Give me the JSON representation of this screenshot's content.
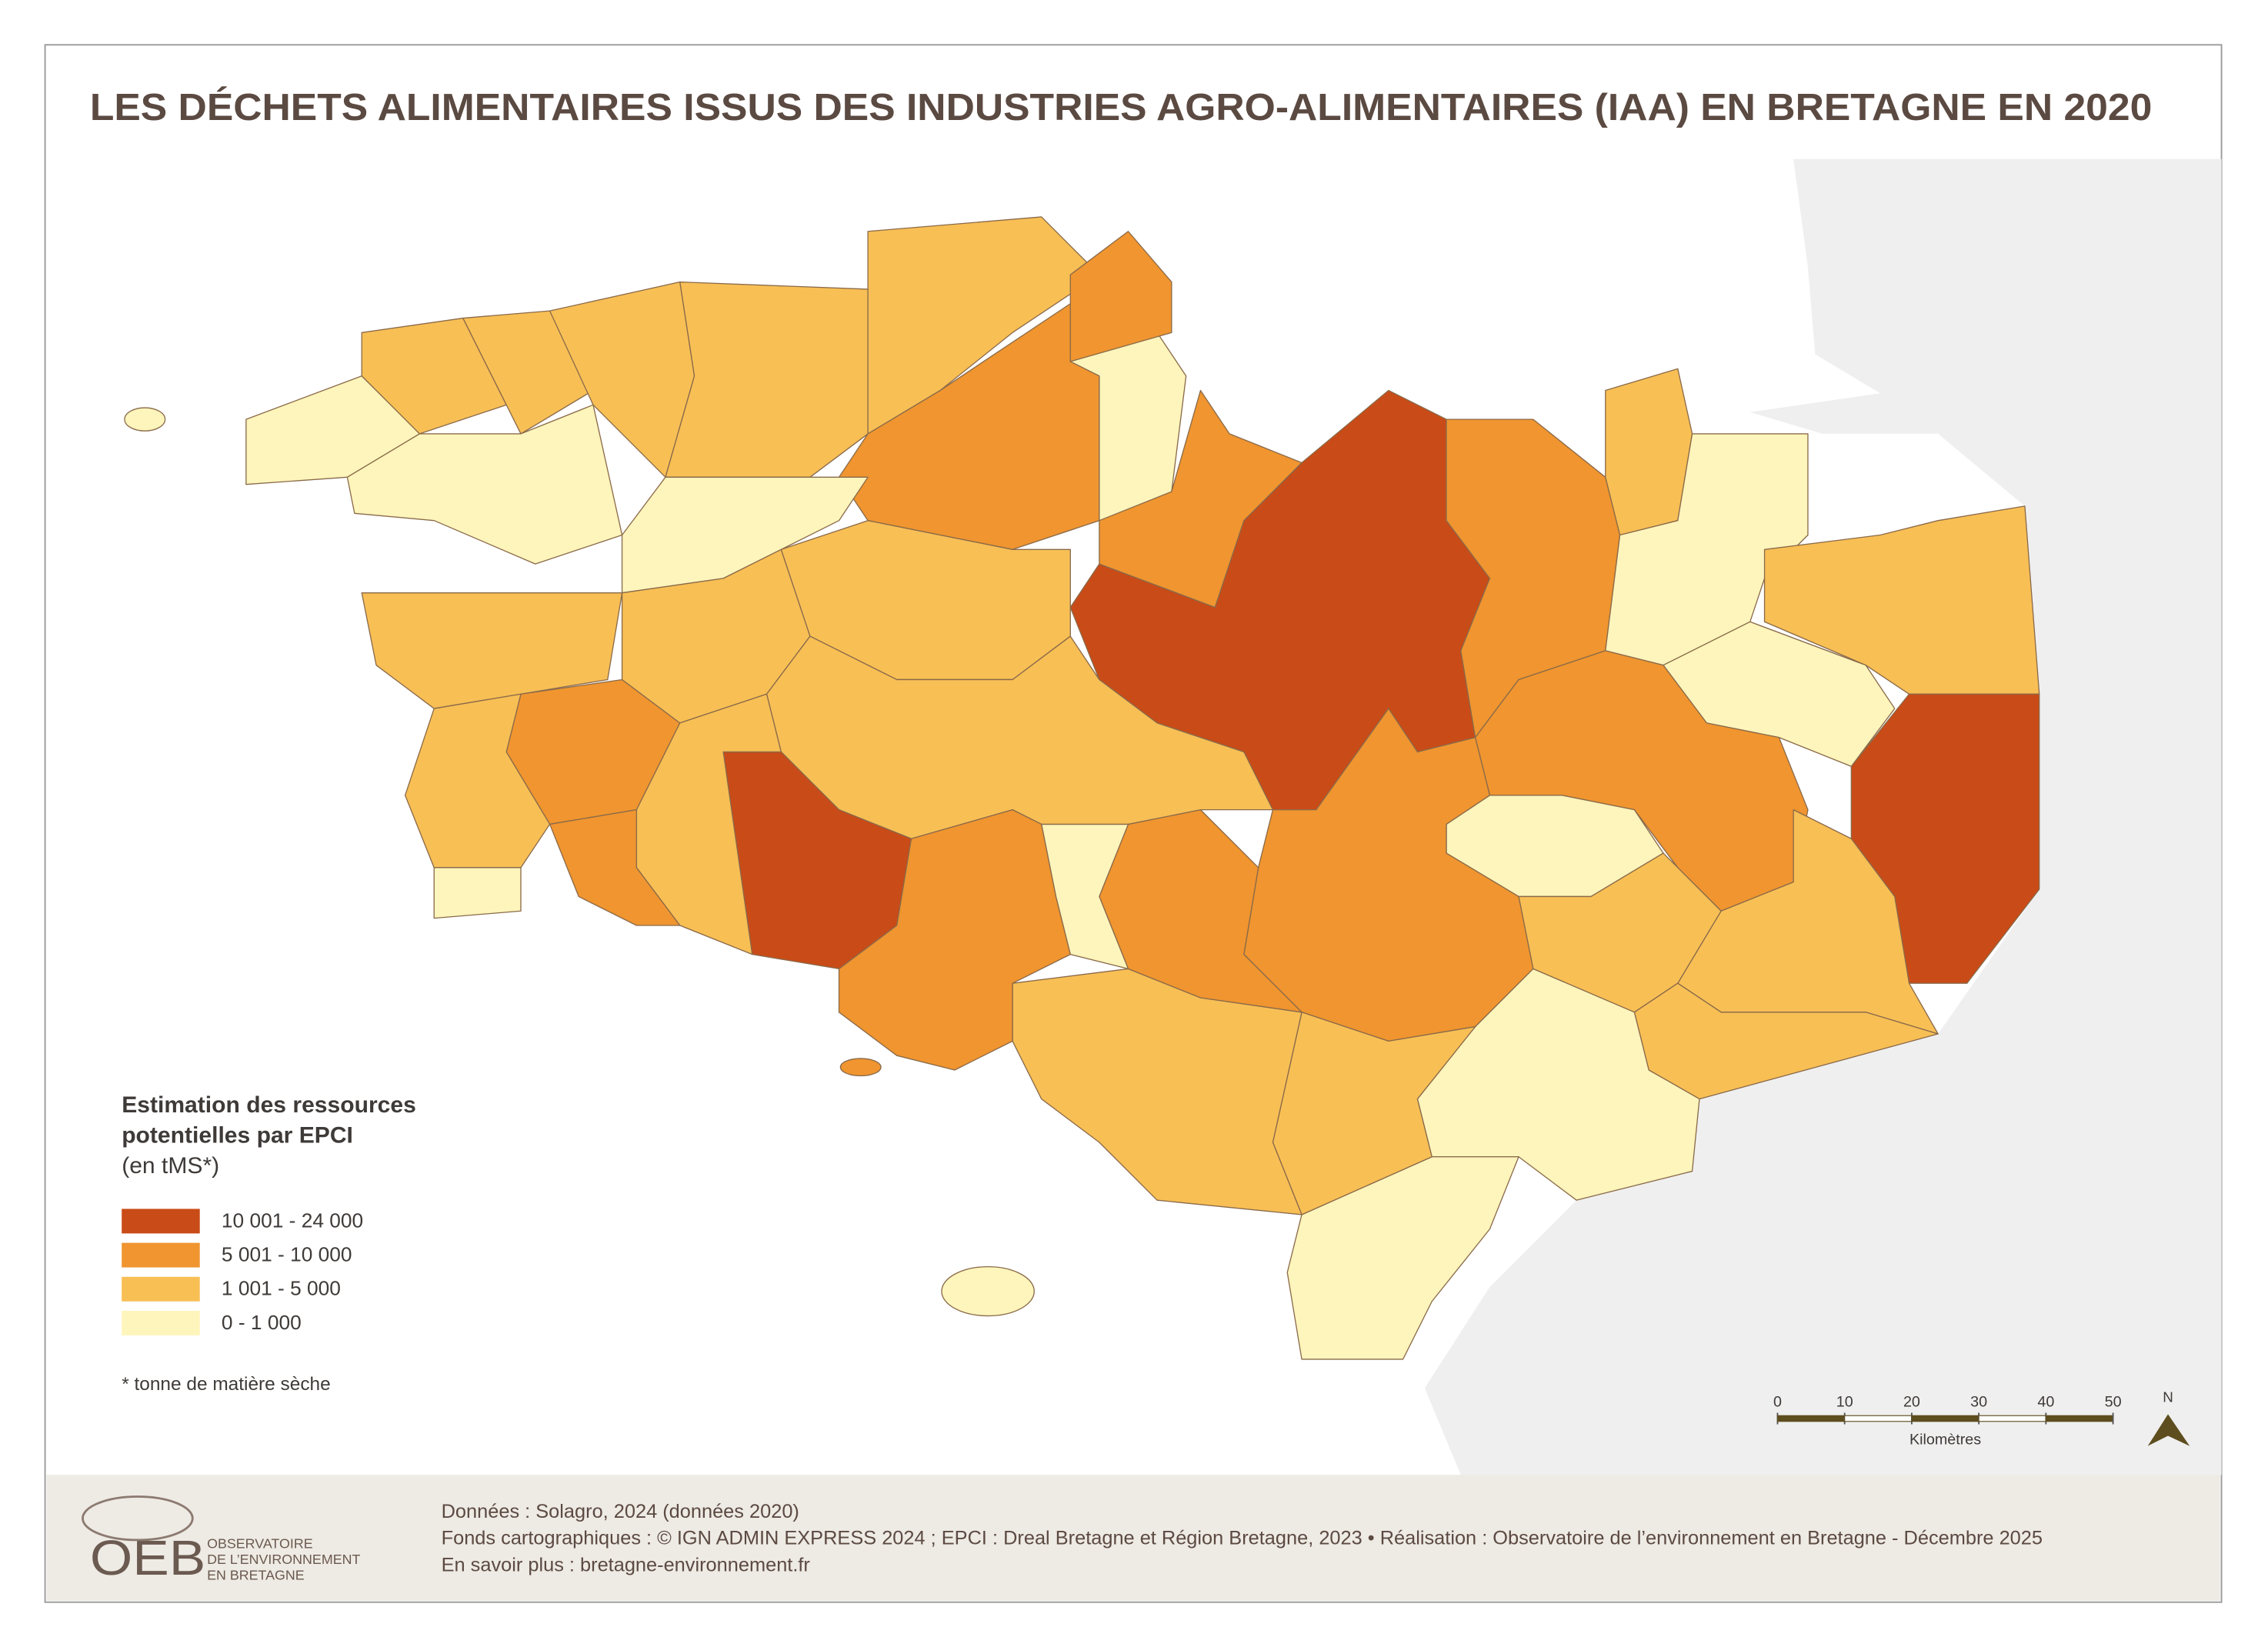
{
  "header": {
    "title": "LES DÉCHETS ALIMENTAIRES ISSUS DES INDUSTRIES AGRO-ALIMENTAIRES (IAA) EN BRETAGNE EN 2020"
  },
  "legend": {
    "title_lines": [
      "Estimation des ressources",
      "potentielles par EPCI",
      "(en tMS*)"
    ],
    "classes": [
      {
        "label": "10 001 - 24 000",
        "color": "#c94b17"
      },
      {
        "label": "5 001 - 10 000",
        "color": "#f0952f"
      },
      {
        "label": "1 001 - 5 000",
        "color": "#f8bf55"
      },
      {
        "label": "0 - 1 000",
        "color": "#fdf5bb"
      }
    ],
    "footnote": "* tonne de matière sèche"
  },
  "scale_bar": {
    "ticks": [
      0,
      10,
      20,
      30,
      40,
      50
    ],
    "unit": "Kilomètres",
    "north": "N"
  },
  "footer": {
    "lines": [
      "Données : Solagro, 2024 (données 2020)",
      "Fonds cartographiques : © IGN ADMIN EXPRESS 2024 ; EPCI : Dreal Bretagne et Région Bretagne, 2023 • Réalisation : Observatoire de l’environnement en Bretagne - Décembre 2025",
      "En savoir plus : bretagne-environnement.fr"
    ],
    "logo": {
      "acronym": "OEB",
      "lines": [
        "OBSERVATOIRE",
        "DE L’ENVIRONNEMENT",
        "EN BRETAGNE"
      ]
    }
  }
}
